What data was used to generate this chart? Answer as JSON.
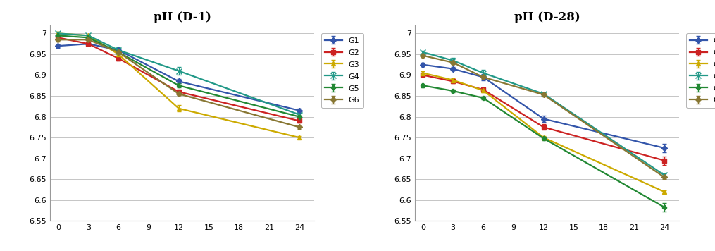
{
  "title1": "pH (D-1)",
  "title2": "pH (D-28)",
  "x": [
    0,
    3,
    6,
    12,
    24
  ],
  "d1": {
    "G1": [
      6.97,
      6.975,
      6.96,
      6.885,
      6.815
    ],
    "G2": [
      6.99,
      6.975,
      6.94,
      6.86,
      6.79
    ],
    "G3": [
      7.0,
      6.995,
      6.95,
      6.82,
      6.75
    ],
    "G4": [
      7.0,
      6.995,
      6.96,
      6.91,
      6.805
    ],
    "G5": [
      6.995,
      6.99,
      6.955,
      6.875,
      6.8
    ],
    "G6": [
      6.985,
      6.985,
      6.955,
      6.855,
      6.775
    ]
  },
  "d1_err": {
    "G1": [
      0.004,
      0.004,
      0.005,
      0.005,
      0.004
    ],
    "G2": [
      0.004,
      0.0,
      0.005,
      0.004,
      0.004
    ],
    "G3": [
      0.004,
      0.0,
      0.004,
      0.008,
      0.004
    ],
    "G4": [
      0.004,
      0.0,
      0.007,
      0.01,
      0.004
    ],
    "G5": [
      0.004,
      0.0,
      0.005,
      0.005,
      0.004
    ],
    "G6": [
      0.004,
      0.0,
      0.004,
      0.004,
      0.004
    ]
  },
  "d28": {
    "G1": [
      6.925,
      6.915,
      6.895,
      6.795,
      6.725
    ],
    "G2": [
      6.9,
      6.885,
      6.865,
      6.775,
      6.695
    ],
    "G3": [
      6.905,
      6.888,
      6.863,
      6.75,
      6.62
    ],
    "G4": [
      6.955,
      6.935,
      6.905,
      6.855,
      6.66
    ],
    "G5": [
      6.875,
      6.862,
      6.845,
      6.748,
      6.583
    ],
    "G6": [
      6.947,
      6.93,
      6.895,
      6.853,
      6.655
    ]
  },
  "d28_err": {
    "G1": [
      0.004,
      0.004,
      0.007,
      0.008,
      0.01
    ],
    "G2": [
      0.004,
      0.004,
      0.005,
      0.007,
      0.01
    ],
    "G3": [
      0.004,
      0.004,
      0.004,
      0.004,
      0.004
    ],
    "G4": [
      0.004,
      0.007,
      0.008,
      0.004,
      0.004
    ],
    "G5": [
      0.004,
      0.004,
      0.004,
      0.004,
      0.01
    ],
    "G6": [
      0.004,
      0.004,
      0.004,
      0.004,
      0.004
    ]
  },
  "colors": {
    "G1": "#3355aa",
    "G2": "#cc2222",
    "G3": "#ccaa00",
    "G4": "#229988",
    "G5": "#228833",
    "G6": "#887733"
  },
  "markers": {
    "G1": "D",
    "G2": "s",
    "G3": "^",
    "G4": "x",
    "G5": "P",
    "G6": "D"
  },
  "markersize": {
    "G1": 4,
    "G2": 4,
    "G3": 5,
    "G4": 6,
    "G5": 5,
    "G6": 4
  },
  "ylim": [
    6.55,
    7.02
  ],
  "ytick_values": [
    6.55,
    6.6,
    6.65,
    6.7,
    6.75,
    6.8,
    6.85,
    6.9,
    6.95,
    7.0
  ],
  "ytick_labels": [
    "6.55",
    "6.6",
    "6.65",
    "6.7",
    "6.75",
    "6.8",
    "6.85",
    "6.9",
    "6.95",
    "7"
  ],
  "xticks": [
    0,
    3,
    6,
    9,
    12,
    15,
    18,
    21,
    24
  ],
  "xlim": [
    -0.8,
    25.5
  ],
  "linewidth": 1.6,
  "background": "#ffffff",
  "legend_labels": [
    "G1",
    "G2",
    "G3",
    "G4",
    "G5",
    "G6"
  ]
}
